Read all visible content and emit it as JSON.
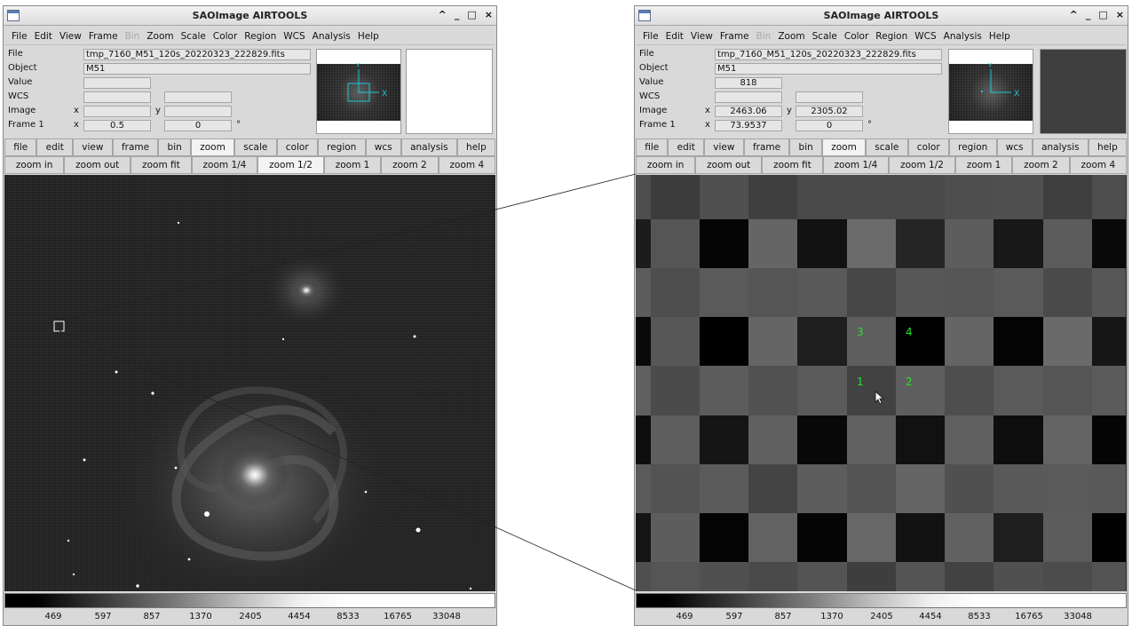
{
  "window_title": "SAOImage AIRTOOLS",
  "title_controls": [
    "^",
    "_",
    "□",
    "×"
  ],
  "menu": [
    "File",
    "Edit",
    "View",
    "Frame",
    "Bin",
    "Zoom",
    "Scale",
    "Color",
    "Region",
    "WCS",
    "Analysis",
    "Help"
  ],
  "menu_disabled": "Bin",
  "info_labels": {
    "file": "File",
    "object": "Object",
    "value": "Value",
    "wcs": "WCS",
    "image": "Image",
    "frame": "Frame 1",
    "x": "x",
    "y": "y",
    "deg": "°"
  },
  "buttons_top": [
    "file",
    "edit",
    "view",
    "frame",
    "bin",
    "zoom",
    "scale",
    "color",
    "region",
    "wcs",
    "analysis",
    "help"
  ],
  "buttons_top_active": "zoom",
  "buttons_zoom": [
    "zoom in",
    "zoom out",
    "zoom fit",
    "zoom 1/4",
    "zoom 1/2",
    "zoom 1",
    "zoom 2",
    "zoom 4"
  ],
  "colorbar_labels": [
    "469",
    "597",
    "857",
    "1370",
    "2405",
    "4454",
    "8533",
    "16765",
    "33048"
  ],
  "left": {
    "file": "tmp_7160_M51_120s_20220323_222829.fits",
    "object": "M51",
    "value": "",
    "wcs1": "",
    "wcs2": "",
    "image_x": "",
    "image_y": "",
    "frame_zoom": "0.5",
    "frame_angle": "0",
    "active_zoom": "zoom 1/2"
  },
  "right": {
    "file": "tmp_7160_M51_120s_20220323_222829.fits",
    "object": "M51",
    "value": "818",
    "wcs1": "",
    "wcs2": "",
    "image_x": "2463.06",
    "image_y": "2305.02",
    "frame_zoom": "73.9537",
    "frame_angle": "0",
    "active_zoom": "",
    "pixel_labels": [
      "1",
      "2",
      "3",
      "4"
    ]
  },
  "panner_axis_labels": {
    "x": "X",
    "y": "Y"
  },
  "colors": {
    "pixel_label": "#27e227",
    "panner_box": "#19c8d6"
  }
}
